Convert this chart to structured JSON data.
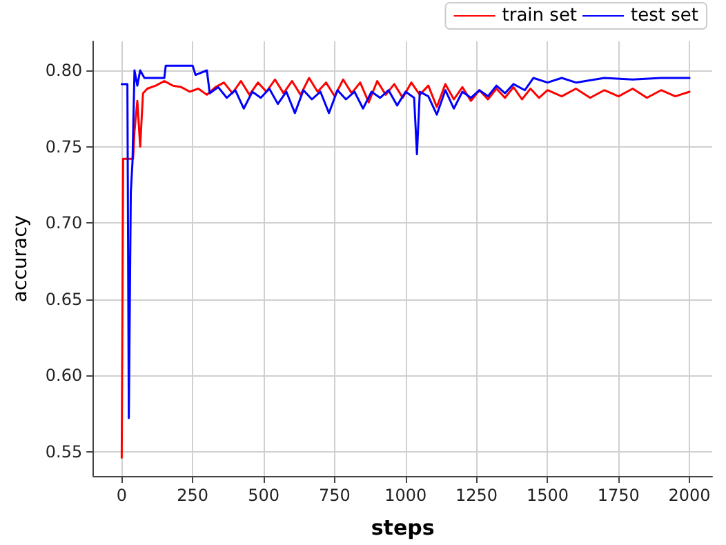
{
  "chart_data": {
    "type": "line",
    "xlabel": "steps",
    "ylabel": "accuracy",
    "xlim": [
      -100,
      2080
    ],
    "xticks": [
      0,
      250,
      500,
      750,
      1000,
      1250,
      1500,
      1750,
      2000
    ],
    "ylim": [
      0.534,
      0.819
    ],
    "yticks": [
      {
        "value": 0.55,
        "label": "0.55"
      },
      {
        "value": 0.6,
        "label": "0.60"
      },
      {
        "value": 0.65,
        "label": "0.65"
      },
      {
        "value": 0.7,
        "label": "0.70"
      },
      {
        "value": 0.75,
        "label": "0.75"
      },
      {
        "value": 0.8,
        "label": "0.80"
      }
    ],
    "grid": true,
    "legend": "top right",
    "marker": "none",
    "line_style": "solid",
    "series": [
      {
        "name": "train set",
        "color": "#ff0000",
        "x": [
          0,
          5,
          40,
          45,
          55,
          65,
          75,
          90,
          120,
          150,
          180,
          210,
          240,
          270,
          300,
          330,
          360,
          390,
          420,
          450,
          480,
          510,
          540,
          570,
          600,
          630,
          660,
          690,
          720,
          750,
          780,
          810,
          840,
          870,
          900,
          930,
          960,
          990,
          1020,
          1050,
          1080,
          1110,
          1140,
          1170,
          1200,
          1230,
          1260,
          1290,
          1320,
          1350,
          1380,
          1410,
          1440,
          1470,
          1500,
          1550,
          1600,
          1650,
          1700,
          1750,
          1800,
          1850,
          1900,
          1950,
          2000
        ],
        "values": [
          0.546,
          0.742,
          0.742,
          0.76,
          0.78,
          0.75,
          0.785,
          0.788,
          0.79,
          0.793,
          0.79,
          0.789,
          0.786,
          0.788,
          0.784,
          0.789,
          0.792,
          0.785,
          0.793,
          0.784,
          0.792,
          0.786,
          0.794,
          0.785,
          0.793,
          0.784,
          0.795,
          0.786,
          0.792,
          0.783,
          0.794,
          0.785,
          0.792,
          0.779,
          0.793,
          0.784,
          0.791,
          0.782,
          0.792,
          0.784,
          0.79,
          0.776,
          0.791,
          0.781,
          0.789,
          0.78,
          0.787,
          0.781,
          0.788,
          0.782,
          0.789,
          0.781,
          0.788,
          0.782,
          0.787,
          0.783,
          0.788,
          0.782,
          0.787,
          0.783,
          0.788,
          0.782,
          0.787,
          0.783,
          0.786
        ]
      },
      {
        "name": "test set",
        "color": "#0000ff",
        "x": [
          0,
          20,
          25,
          32,
          38,
          45,
          55,
          65,
          80,
          150,
          155,
          250,
          260,
          300,
          310,
          340,
          370,
          400,
          430,
          460,
          490,
          520,
          550,
          580,
          610,
          640,
          670,
          700,
          730,
          760,
          790,
          820,
          850,
          880,
          910,
          940,
          970,
          1000,
          1030,
          1040,
          1050,
          1080,
          1110,
          1140,
          1170,
          1200,
          1230,
          1260,
          1290,
          1320,
          1350,
          1380,
          1420,
          1450,
          1500,
          1550,
          1600,
          1700,
          1800,
          1900,
          2000
        ],
        "values": [
          0.791,
          0.791,
          0.572,
          0.72,
          0.74,
          0.8,
          0.79,
          0.8,
          0.795,
          0.795,
          0.803,
          0.803,
          0.797,
          0.8,
          0.785,
          0.789,
          0.782,
          0.787,
          0.775,
          0.786,
          0.782,
          0.788,
          0.778,
          0.786,
          0.772,
          0.787,
          0.781,
          0.786,
          0.772,
          0.787,
          0.781,
          0.786,
          0.775,
          0.786,
          0.782,
          0.787,
          0.777,
          0.786,
          0.782,
          0.745,
          0.786,
          0.783,
          0.771,
          0.787,
          0.775,
          0.786,
          0.782,
          0.787,
          0.783,
          0.79,
          0.785,
          0.791,
          0.787,
          0.795,
          0.792,
          0.795,
          0.792,
          0.795,
          0.794,
          0.795,
          0.795
        ]
      }
    ]
  }
}
